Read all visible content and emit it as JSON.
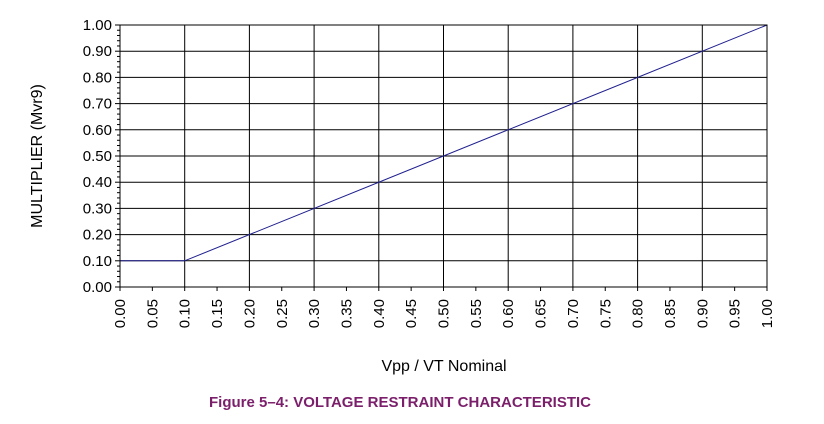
{
  "colors": {
    "series": "#1f1f8f",
    "grid": "#000000",
    "caption": "#7b1f6b"
  },
  "chart_data": {
    "type": "line",
    "caption": "Figure 5–4: VOLTAGE RESTRAINT CHARACTERISTIC",
    "xlabel": "Vpp / VT Nominal",
    "ylabel": "MULTIPLIER  (Mvr9)",
    "xlim": [
      0,
      1
    ],
    "ylim": [
      0,
      1
    ],
    "x_ticks": [
      "0.00",
      "0.05",
      "0.10",
      "0.15",
      "0.20",
      "0.25",
      "0.30",
      "0.35",
      "0.40",
      "0.45",
      "0.50",
      "0.55",
      "0.60",
      "0.65",
      "0.70",
      "0.75",
      "0.80",
      "0.85",
      "0.90",
      "0.95",
      "1.00"
    ],
    "y_ticks": [
      "0.00",
      "0.10",
      "0.20",
      "0.30",
      "0.40",
      "0.50",
      "0.60",
      "0.70",
      "0.80",
      "0.90",
      "1.00"
    ],
    "x_gridlines": [
      0.1,
      0.2,
      0.3,
      0.4,
      0.5,
      0.6,
      0.7,
      0.8,
      0.9,
      1.0
    ],
    "y_gridlines": [
      0.1,
      0.2,
      0.3,
      0.4,
      0.5,
      0.6,
      0.7,
      0.8,
      0.9,
      1.0
    ],
    "grid": true,
    "legend": "none",
    "series": [
      {
        "x": [
          0.0,
          0.1,
          1.0
        ],
        "y": [
          0.1,
          0.1,
          1.0
        ]
      }
    ]
  }
}
